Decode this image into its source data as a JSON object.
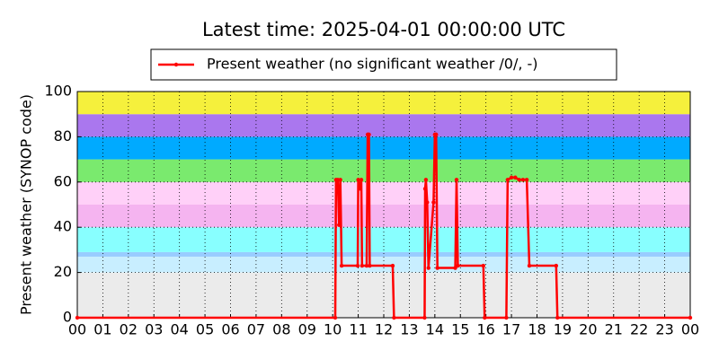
{
  "chart_data": {
    "type": "line",
    "title": "Latest time: 2025-04-01 00:00:00 UTC",
    "y_label": "Present weather (SYNOP code)",
    "x": [
      0,
      10.1,
      10.13,
      10.2,
      10.25,
      10.3,
      10.35,
      10.98,
      11.0,
      11.08,
      11.12,
      11.15,
      11.33,
      11.37,
      11.42,
      11.45,
      12.35,
      12.4,
      13.6,
      13.62,
      13.65,
      13.7,
      13.75,
      13.95,
      14.0,
      14.05,
      14.1,
      14.8,
      14.85,
      14.9,
      15.9,
      15.95,
      16.8,
      16.85,
      17.0,
      17.15,
      17.3,
      17.45,
      17.6,
      17.7,
      18.75,
      18.8,
      24
    ],
    "series": [
      {
        "name": "Present weather (no significant weather /0/, -)",
        "color": "#ff0000",
        "values": [
          0,
          0,
          61,
          61,
          41,
          61,
          23,
          23,
          61,
          57,
          61,
          23,
          23,
          81,
          81,
          23,
          23,
          0,
          0,
          57,
          61,
          51,
          22,
          51,
          81,
          81,
          22,
          22,
          61,
          23,
          23,
          0,
          0,
          61,
          62,
          62,
          61,
          61,
          61,
          23,
          23,
          0,
          0
        ]
      }
    ],
    "xlim": [
      0,
      24
    ],
    "xticks": [
      {
        "value": 0,
        "label": "00"
      },
      {
        "value": 1,
        "label": "01"
      },
      {
        "value": 2,
        "label": "02"
      },
      {
        "value": 3,
        "label": "03"
      },
      {
        "value": 4,
        "label": "04"
      },
      {
        "value": 5,
        "label": "05"
      },
      {
        "value": 6,
        "label": "06"
      },
      {
        "value": 7,
        "label": "07"
      },
      {
        "value": 8,
        "label": "08"
      },
      {
        "value": 9,
        "label": "09"
      },
      10,
      11,
      12,
      13,
      14,
      15,
      16,
      17,
      18,
      19,
      20,
      21,
      22,
      23,
      {
        "value": 24,
        "label": "00"
      }
    ],
    "ylim": [
      0,
      100
    ],
    "yticks": [
      0,
      20,
      40,
      60,
      80,
      100
    ],
    "grid": true,
    "legend": "top",
    "bands": [
      {
        "from": 0,
        "to": 20,
        "color": "#ebebeb"
      },
      {
        "from": 20,
        "to": 27,
        "color": "#c8eeff"
      },
      {
        "from": 27,
        "to": 29,
        "color": "#99ccff"
      },
      {
        "from": 29,
        "to": 40,
        "color": "#88ffff"
      },
      {
        "from": 40,
        "to": 50,
        "color": "#f5b4f0"
      },
      {
        "from": 50,
        "to": 60,
        "color": "#ffd0f8"
      },
      {
        "from": 60,
        "to": 70,
        "color": "#7aea6e"
      },
      {
        "from": 70,
        "to": 80,
        "color": "#00aaff"
      },
      {
        "from": 80,
        "to": 90,
        "color": "#aa77ee"
      },
      {
        "from": 90,
        "to": 100,
        "color": "#f5f03c"
      }
    ]
  }
}
